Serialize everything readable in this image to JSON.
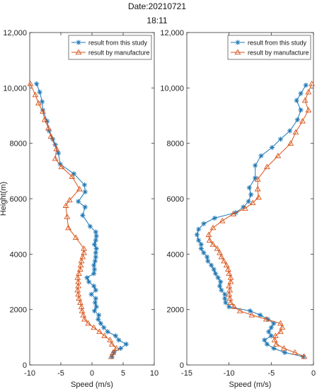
{
  "figure": {
    "title_line1": "Date:20210721",
    "title_line2": "18:11"
  },
  "colors": {
    "series_study": "#1f77b4",
    "series_manufacture": "#d95319",
    "axis": "#333333"
  },
  "chart_data": [
    {
      "type": "line",
      "orientation": "profile",
      "xlabel": "Speed (m/s)",
      "ylabel": "Height(m)",
      "xlim": [
        -10,
        10
      ],
      "ylim": [
        0,
        12000
      ],
      "xticks": [
        -10,
        -5,
        0,
        5,
        10
      ],
      "yticks": [
        0,
        2000,
        4000,
        6000,
        8000,
        10000,
        12000
      ],
      "ytick_labels": [
        "0",
        "2000",
        "4000",
        "6000",
        "8000",
        "10,000",
        "12,000"
      ],
      "legend_position": "top-right",
      "grid": false,
      "series": [
        {
          "name": "result from this  study",
          "marker": "star",
          "points": [
            [
              3.2,
              300
            ],
            [
              3.5,
              450
            ],
            [
              4.6,
              600
            ],
            [
              5.5,
              750
            ],
            [
              4.3,
              900
            ],
            [
              3.8,
              1050
            ],
            [
              2.5,
              1200
            ],
            [
              1.9,
              1350
            ],
            [
              1.4,
              1500
            ],
            [
              1,
              1650
            ],
            [
              1.1,
              1800
            ],
            [
              0.4,
              1950
            ],
            [
              0.7,
              2100
            ],
            [
              0.5,
              2250
            ],
            [
              0.6,
              2400
            ],
            [
              -0.1,
              2550
            ],
            [
              0.6,
              2700
            ],
            [
              0.3,
              2850
            ],
            [
              -0.5,
              3000
            ],
            [
              -0.8,
              3150
            ],
            [
              0.3,
              3300
            ],
            [
              0.4,
              3450
            ],
            [
              0.3,
              3600
            ],
            [
              0.5,
              3750
            ],
            [
              0.6,
              3900
            ],
            [
              0.6,
              4050
            ],
            [
              0.7,
              4200
            ],
            [
              0.4,
              4350
            ],
            [
              0.6,
              4500
            ],
            [
              0.7,
              4650
            ],
            [
              0.6,
              4800
            ],
            [
              -0.3,
              5000
            ],
            [
              -1.5,
              5400
            ],
            [
              -1.1,
              5700
            ],
            [
              -2.2,
              5900
            ],
            [
              -1.1,
              6250
            ],
            [
              -1.2,
              6500
            ],
            [
              -2.9,
              6900
            ],
            [
              -5.1,
              7250
            ],
            [
              -5.4,
              7650
            ],
            [
              -5.9,
              7950
            ],
            [
              -6.3,
              8150
            ],
            [
              -6.9,
              8450
            ],
            [
              -7.2,
              8800
            ],
            [
              -7.9,
              9200
            ],
            [
              -8.0,
              9500
            ],
            [
              -8.4,
              9850
            ],
            [
              -8.9,
              10150
            ]
          ]
        },
        {
          "name": "result by manufacture",
          "marker": "triangle",
          "points": [
            [
              3.1,
              300
            ],
            [
              3.4,
              450
            ],
            [
              3.9,
              600
            ],
            [
              3.2,
              750
            ],
            [
              2.9,
              900
            ],
            [
              2.0,
              1050
            ],
            [
              1.2,
              1200
            ],
            [
              0.3,
              1350
            ],
            [
              -0.6,
              1500
            ],
            [
              -1.2,
              1650
            ],
            [
              -1.4,
              1800
            ],
            [
              -1.6,
              1950
            ],
            [
              -1.7,
              2100
            ],
            [
              -1.9,
              2250
            ],
            [
              -2.1,
              2400
            ],
            [
              -2.2,
              2550
            ],
            [
              -2.3,
              2700
            ],
            [
              -2.2,
              2850
            ],
            [
              -2.2,
              3000
            ],
            [
              -2.3,
              3150
            ],
            [
              -2.1,
              3300
            ],
            [
              -1.9,
              3450
            ],
            [
              -1.8,
              3600
            ],
            [
              -1.7,
              3750
            ],
            [
              -1.5,
              3900
            ],
            [
              -1.3,
              4050
            ],
            [
              -1.3,
              4200
            ],
            [
              -2.6,
              4600
            ],
            [
              -3.8,
              4950
            ],
            [
              -4.0,
              5350
            ],
            [
              -4.2,
              5750
            ],
            [
              -3.6,
              5950
            ],
            [
              -2.0,
              6350
            ],
            [
              -3.2,
              6800
            ],
            [
              -4.9,
              7150
            ],
            [
              -5.9,
              7450
            ],
            [
              -5.7,
              7800
            ],
            [
              -6.6,
              8250
            ],
            [
              -7.0,
              8550
            ],
            [
              -7.6,
              8850
            ],
            [
              -7.9,
              9150
            ],
            [
              -8.6,
              9450
            ],
            [
              -9.1,
              9750
            ],
            [
              -9.9,
              10150
            ]
          ]
        }
      ]
    },
    {
      "type": "line",
      "orientation": "profile",
      "xlabel": "Speed (m/s)",
      "ylabel": "",
      "xlim": [
        -15,
        0
      ],
      "ylim": [
        0,
        12000
      ],
      "xticks": [
        -15,
        -10,
        -5,
        0
      ],
      "yticks": [
        0,
        2000,
        4000,
        6000,
        8000,
        10000,
        12000
      ],
      "ytick_labels": [
        "0",
        "2000",
        "4000",
        "6000",
        "8000",
        "10,000",
        "12,000"
      ],
      "legend_position": "top-right",
      "grid": false,
      "series": [
        {
          "name": "result from this  study",
          "marker": "star",
          "points": [
            [
              -1.2,
              300
            ],
            [
              -3.4,
              450
            ],
            [
              -4.7,
              600
            ],
            [
              -5.5,
              750
            ],
            [
              -5.8,
              900
            ],
            [
              -5.0,
              1050
            ],
            [
              -5.3,
              1200
            ],
            [
              -5.0,
              1350
            ],
            [
              -4.7,
              1500
            ],
            [
              -5.4,
              1650
            ],
            [
              -6.3,
              1800
            ],
            [
              -7.5,
              1950
            ],
            [
              -10.0,
              2100
            ],
            [
              -10.4,
              2250
            ],
            [
              -10.5,
              2400
            ],
            [
              -10.5,
              2550
            ],
            [
              -10.9,
              2700
            ],
            [
              -11.1,
              2850
            ],
            [
              -11.0,
              3000
            ],
            [
              -11.3,
              3150
            ],
            [
              -11.6,
              3300
            ],
            [
              -11.8,
              3450
            ],
            [
              -12.1,
              3600
            ],
            [
              -12.5,
              3750
            ],
            [
              -12.6,
              3900
            ],
            [
              -13.0,
              4050
            ],
            [
              -13.3,
              4200
            ],
            [
              -13.3,
              4350
            ],
            [
              -13.6,
              4500
            ],
            [
              -13.8,
              4700
            ],
            [
              -13.6,
              4900
            ],
            [
              -13.0,
              5100
            ],
            [
              -11.7,
              5300
            ],
            [
              -9.2,
              5500
            ],
            [
              -8.3,
              5700
            ],
            [
              -7.7,
              5900
            ],
            [
              -7.4,
              6150
            ],
            [
              -7.6,
              6400
            ],
            [
              -6.9,
              6750
            ],
            [
              -6.9,
              7200
            ],
            [
              -6.2,
              7550
            ],
            [
              -4.9,
              7850
            ],
            [
              -3.9,
              8150
            ],
            [
              -2.8,
              8450
            ],
            [
              -1.9,
              8850
            ],
            [
              -1.5,
              9200
            ],
            [
              -2.0,
              9550
            ],
            [
              -1.5,
              9800
            ],
            [
              -0.9,
              10100
            ]
          ]
        },
        {
          "name": "result by manufacture",
          "marker": "triangle",
          "points": [
            [
              -1.1,
              300
            ],
            [
              -2.2,
              450
            ],
            [
              -3.5,
              600
            ],
            [
              -4.4,
              750
            ],
            [
              -4.6,
              900
            ],
            [
              -4.5,
              1050
            ],
            [
              -3.9,
              1200
            ],
            [
              -3.7,
              1350
            ],
            [
              -3.9,
              1500
            ],
            [
              -5.6,
              1650
            ],
            [
              -7.3,
              1800
            ],
            [
              -8.7,
              1950
            ],
            [
              -9.4,
              2100
            ],
            [
              -9.8,
              2250
            ],
            [
              -9.9,
              2400
            ],
            [
              -10.0,
              2550
            ],
            [
              -9.9,
              2700
            ],
            [
              -10.0,
              2850
            ],
            [
              -9.8,
              3000
            ],
            [
              -9.8,
              3150
            ],
            [
              -10.0,
              3300
            ],
            [
              -10.1,
              3450
            ],
            [
              -10.3,
              3600
            ],
            [
              -10.6,
              3750
            ],
            [
              -10.9,
              3900
            ],
            [
              -11.1,
              4050
            ],
            [
              -11.4,
              4200
            ],
            [
              -11.9,
              4350
            ],
            [
              -12.3,
              4500
            ],
            [
              -12.4,
              4700
            ],
            [
              -11.9,
              4950
            ],
            [
              -10.8,
              5200
            ],
            [
              -9.5,
              5450
            ],
            [
              -8.1,
              5650
            ],
            [
              -7.2,
              5850
            ],
            [
              -6.5,
              6050
            ],
            [
              -6.6,
              6350
            ],
            [
              -6.6,
              6700
            ],
            [
              -5.5,
              7150
            ],
            [
              -4.2,
              7550
            ],
            [
              -2.7,
              8000
            ],
            [
              -2.1,
              8400
            ],
            [
              -1.3,
              8800
            ],
            [
              -0.6,
              9200
            ],
            [
              -1.0,
              9550
            ],
            [
              -0.6,
              9850
            ],
            [
              -0.2,
              10150
            ]
          ]
        }
      ]
    }
  ]
}
